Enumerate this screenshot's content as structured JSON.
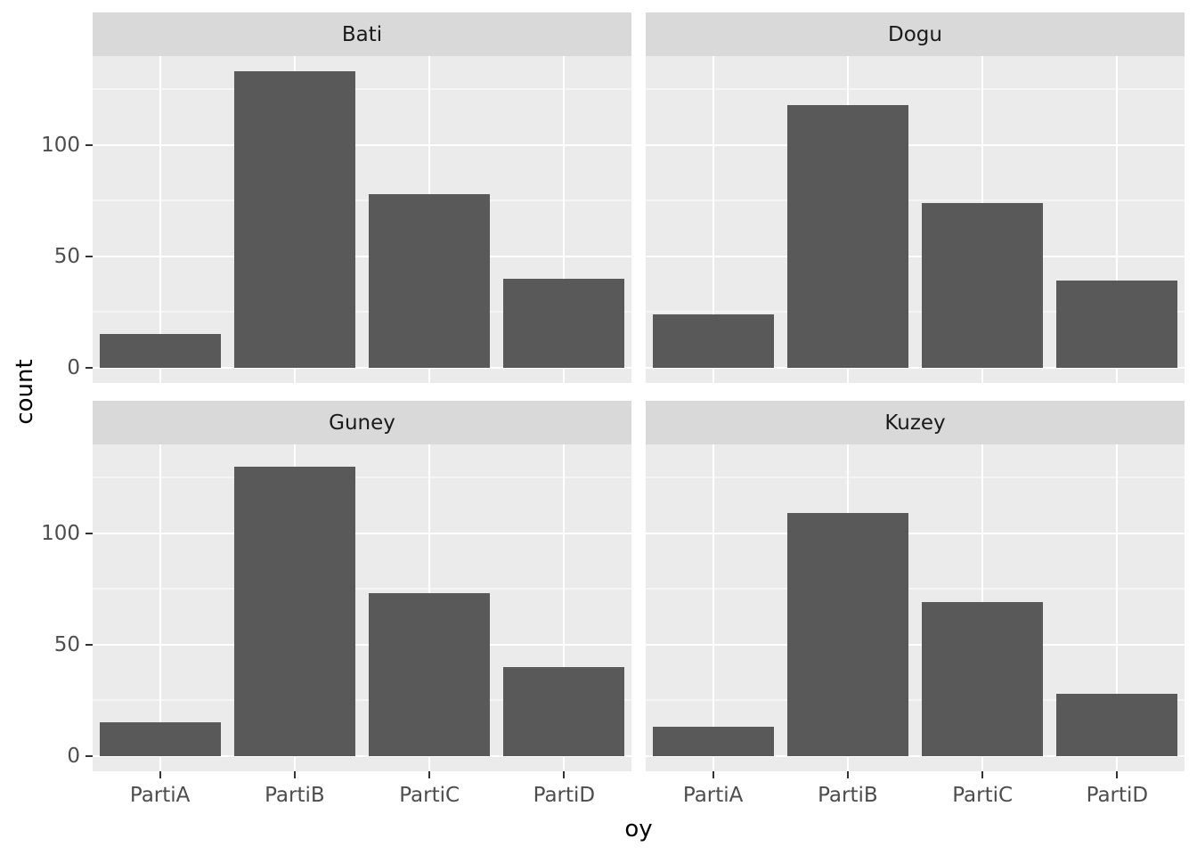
{
  "chart_data": {
    "type": "bar",
    "title": "",
    "xlabel": "oy",
    "ylabel": "count",
    "categories": [
      "PartiA",
      "PartiB",
      "PartiC",
      "PartiD"
    ],
    "facets": [
      {
        "name": "Bati",
        "values": [
          15,
          133,
          78,
          40
        ]
      },
      {
        "name": "Dogu",
        "values": [
          24,
          118,
          74,
          39
        ]
      },
      {
        "name": "Guney",
        "values": [
          15,
          130,
          73,
          40
        ]
      },
      {
        "name": "Kuzey",
        "values": [
          13,
          109,
          69,
          28
        ]
      }
    ],
    "y_ticks": [
      0,
      50,
      100
    ],
    "minor_y_ticks": [
      25,
      75,
      125
    ],
    "ylim": [
      -7,
      140
    ],
    "bar_width_fraction": 0.9,
    "grid": "on",
    "legend": "none",
    "layout": "facet-2x2",
    "colors": {
      "bar": "#595959",
      "panel_bg": "#EBEBEB",
      "strip_bg": "#D9D9D9",
      "grid": "#FFFFFF",
      "tick_mark": "#333333",
      "tick_text": "#4D4D4D",
      "axis_title_text": "#000000",
      "background": "#FFFFFF"
    }
  }
}
